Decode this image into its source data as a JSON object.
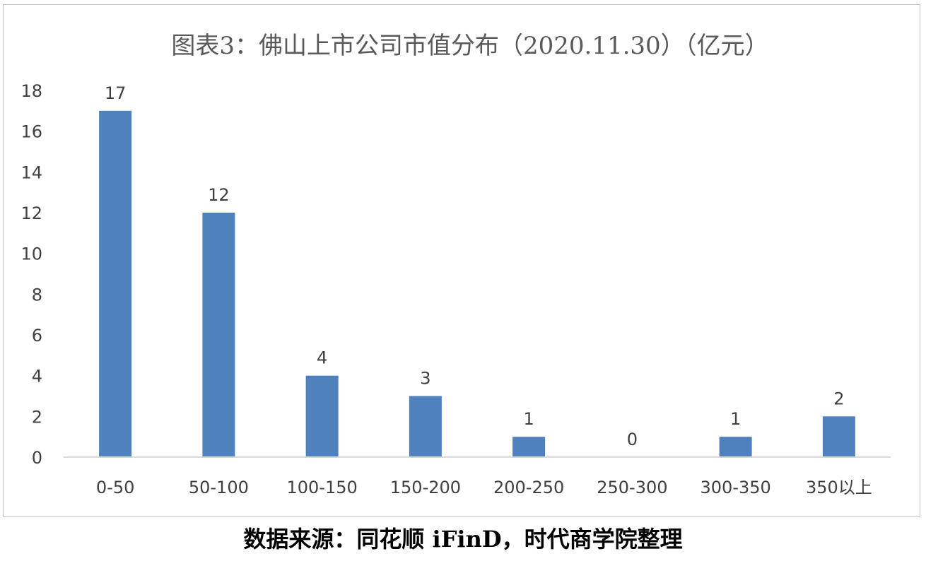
{
  "chart_data": {
    "type": "bar",
    "title": "图表3：佛山上市公司市值分布（2020.11.30）（亿元）",
    "categories": [
      "0-50",
      "50-100",
      "100-150",
      "150-200",
      "200-250",
      "250-300",
      "300-350",
      "350以上"
    ],
    "values": [
      17,
      12,
      4,
      3,
      1,
      0,
      1,
      2
    ],
    "ylim": [
      0,
      18
    ],
    "yticks": [
      0,
      2,
      4,
      6,
      8,
      10,
      12,
      14,
      16,
      18
    ],
    "grid": false,
    "legend": "none",
    "bar_color": "#4f81bd"
  },
  "source_note": "数据来源：同花顺 iFinD，时代商学院整理"
}
